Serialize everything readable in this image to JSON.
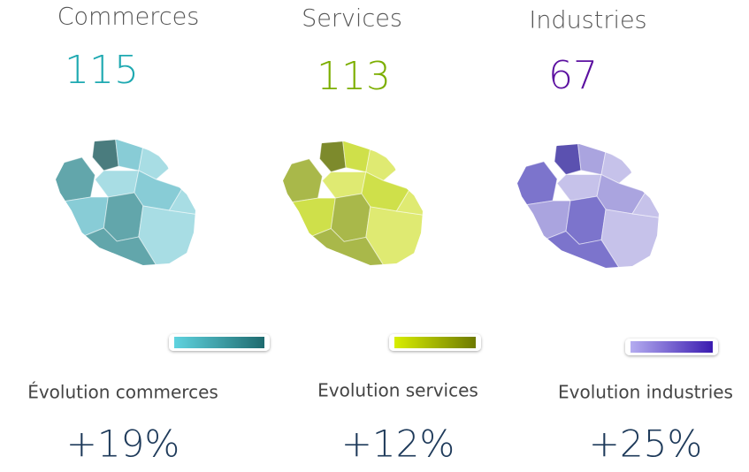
{
  "panels": [
    {
      "title": "Commerces",
      "count": 115,
      "evolution_label": "Évolution commerces",
      "evolution": "+19%"
    },
    {
      "title": "Services",
      "count": 113,
      "evolution_label": "Evolution services",
      "evolution": "+12%"
    },
    {
      "title": "Industries",
      "count": 67,
      "evolution_label": "Evolution industries",
      "evolution": "+25%"
    }
  ]
}
